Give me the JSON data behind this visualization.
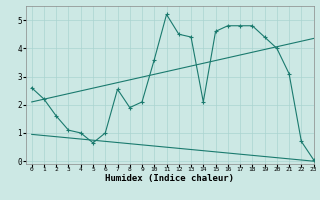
{
  "xlabel": "Humidex (Indice chaleur)",
  "xlim": [
    -0.5,
    23
  ],
  "ylim": [
    -0.1,
    5.5
  ],
  "yticks": [
    0,
    1,
    2,
    3,
    4,
    5
  ],
  "xticks": [
    0,
    1,
    2,
    3,
    4,
    5,
    6,
    7,
    8,
    9,
    10,
    11,
    12,
    13,
    14,
    15,
    16,
    17,
    18,
    19,
    20,
    21,
    22,
    23
  ],
  "bg_color": "#cce8e4",
  "line_color": "#1a7a6e",
  "grid_color": "#aad4d0",
  "main_line": {
    "x": [
      0,
      1,
      2,
      3,
      4,
      5,
      6,
      7,
      8,
      9,
      10,
      11,
      12,
      13,
      14,
      15,
      16,
      17,
      18,
      19,
      20,
      21,
      22,
      23
    ],
    "y": [
      2.6,
      2.2,
      1.6,
      1.1,
      1.0,
      0.65,
      1.0,
      2.55,
      1.9,
      2.1,
      3.6,
      5.2,
      4.5,
      4.4,
      2.1,
      4.6,
      4.8,
      4.8,
      4.8,
      4.4,
      4.0,
      3.1,
      0.7,
      0.05
    ]
  },
  "trend_line1": {
    "x": [
      0,
      23
    ],
    "y": [
      2.1,
      4.35
    ]
  },
  "trend_line2": {
    "x": [
      0,
      23
    ],
    "y": [
      0.95,
      0.0
    ]
  }
}
